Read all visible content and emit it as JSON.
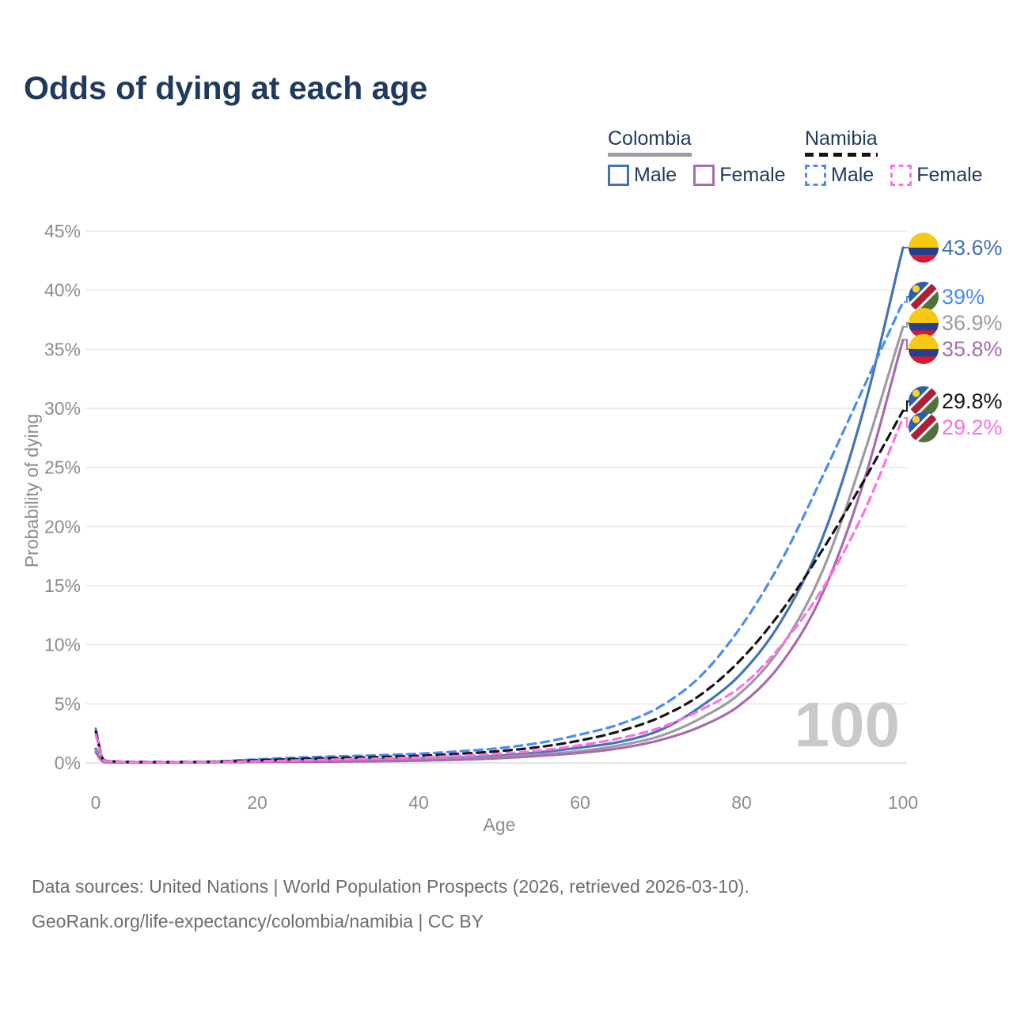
{
  "title": "Odds of dying at each age",
  "legend": {
    "groups": [
      {
        "title": "Colombia",
        "items": [
          {
            "label": "Male"
          },
          {
            "label": "Female"
          }
        ]
      },
      {
        "title": "Namibia",
        "items": [
          {
            "label": "Male"
          },
          {
            "label": "Female"
          }
        ]
      }
    ]
  },
  "watermark": "100",
  "footer": {
    "line1": "Data sources: United Nations | World Population Prospects (2026, retrieved 2026-03-10).",
    "line2": "GeoRank.org/life-expectancy/colombia/namibia | CC BY"
  },
  "chart_data": {
    "type": "line",
    "title": "Odds of dying at each age",
    "xlabel": "Age",
    "ylabel": "Probability of dying",
    "xlim": [
      0,
      100
    ],
    "ylim_pct": [
      0,
      45
    ],
    "x_ticks": [
      {
        "value": 0,
        "label": "0"
      },
      {
        "value": 20,
        "label": "20"
      },
      {
        "value": 40,
        "label": "40"
      },
      {
        "value": 60,
        "label": "60"
      },
      {
        "value": 80,
        "label": "80"
      },
      {
        "value": 100,
        "label": "100"
      }
    ],
    "y_ticks": [
      {
        "value": 0,
        "label": "0%"
      },
      {
        "value": 5,
        "label": "5%"
      },
      {
        "value": 10,
        "label": "10%"
      },
      {
        "value": 15,
        "label": "15%"
      },
      {
        "value": 20,
        "label": "20%"
      },
      {
        "value": 25,
        "label": "25%"
      },
      {
        "value": 30,
        "label": "30%"
      },
      {
        "value": 35,
        "label": "35%"
      },
      {
        "value": 40,
        "label": "40%"
      },
      {
        "value": 45,
        "label": "45%"
      }
    ],
    "grid": "horizontal",
    "legend_position": "top-right",
    "ages": [
      0,
      1,
      5,
      10,
      15,
      20,
      25,
      30,
      35,
      40,
      45,
      50,
      55,
      60,
      65,
      70,
      75,
      80,
      85,
      90,
      95,
      100
    ],
    "series": [
      {
        "id": "co-male",
        "country": "Colombia",
        "sex": "Male",
        "style": "solid",
        "color": "#4273b9",
        "end_label": "43.6%",
        "end_value": 43.6,
        "values": [
          1.2,
          0.09,
          0.04,
          0.04,
          0.1,
          0.25,
          0.3,
          0.3,
          0.3,
          0.35,
          0.45,
          0.6,
          0.9,
          1.3,
          1.8,
          2.8,
          4.8,
          7.6,
          12.1,
          19.0,
          29.6,
          43.6
        ]
      },
      {
        "id": "co-both",
        "country": "Colombia",
        "sex": "Both",
        "style": "solid",
        "color": "#9d9da1",
        "end_label": "36.9%",
        "end_value": 36.9,
        "values": [
          1.05,
          0.08,
          0.035,
          0.035,
          0.08,
          0.16,
          0.19,
          0.2,
          0.22,
          0.27,
          0.36,
          0.5,
          0.72,
          1.0,
          1.5,
          2.3,
          3.8,
          6.0,
          9.9,
          16.2,
          25.8,
          36.9
        ]
      },
      {
        "id": "co-female",
        "country": "Colombia",
        "sex": "Female",
        "style": "solid",
        "color": "#a96bb0",
        "end_label": "35.8%",
        "end_value": 35.8,
        "values": [
          0.9,
          0.07,
          0.03,
          0.03,
          0.05,
          0.08,
          0.1,
          0.11,
          0.14,
          0.19,
          0.27,
          0.4,
          0.6,
          0.85,
          1.25,
          1.95,
          3.1,
          5.0,
          8.5,
          14.3,
          23.5,
          35.8
        ]
      },
      {
        "id": "na-male",
        "country": "Namibia",
        "sex": "Male",
        "style": "dashed",
        "color": "#4b8bf4",
        "end_label": "39%",
        "end_value": 39.0,
        "values": [
          2.9,
          0.22,
          0.09,
          0.08,
          0.13,
          0.3,
          0.45,
          0.55,
          0.65,
          0.78,
          0.98,
          1.25,
          1.7,
          2.4,
          3.3,
          4.8,
          7.4,
          11.6,
          17.2,
          24.2,
          31.6,
          39.0
        ]
      },
      {
        "id": "na-both",
        "country": "Namibia",
        "sex": "Both",
        "style": "dashed",
        "color": "#141414",
        "end_label": "29.8%",
        "end_value": 29.8,
        "values": [
          2.65,
          0.2,
          0.08,
          0.07,
          0.11,
          0.22,
          0.33,
          0.42,
          0.5,
          0.6,
          0.77,
          1.0,
          1.35,
          1.9,
          2.7,
          3.9,
          5.8,
          8.8,
          12.9,
          18.0,
          23.7,
          29.8
        ]
      },
      {
        "id": "na-female",
        "country": "Namibia",
        "sex": "Female",
        "style": "dashed",
        "color": "#ff70e2",
        "end_label": "29.2%",
        "end_value": 29.2,
        "values": [
          2.4,
          0.18,
          0.07,
          0.06,
          0.09,
          0.14,
          0.21,
          0.29,
          0.37,
          0.46,
          0.6,
          0.78,
          1.05,
          1.5,
          2.1,
          3.0,
          4.5,
          6.5,
          10.0,
          14.7,
          21.0,
          29.2
        ]
      }
    ],
    "flag_colors": {
      "colombia": {
        "yellow": "#F6C915",
        "blue": "#24408E",
        "red": "#D81931"
      },
      "namibia": {
        "blue": "#2B5FAE",
        "red": "#B01F33",
        "green": "#51713C",
        "sun": "#FFD02C",
        "white": "#FFFFFF"
      }
    }
  }
}
